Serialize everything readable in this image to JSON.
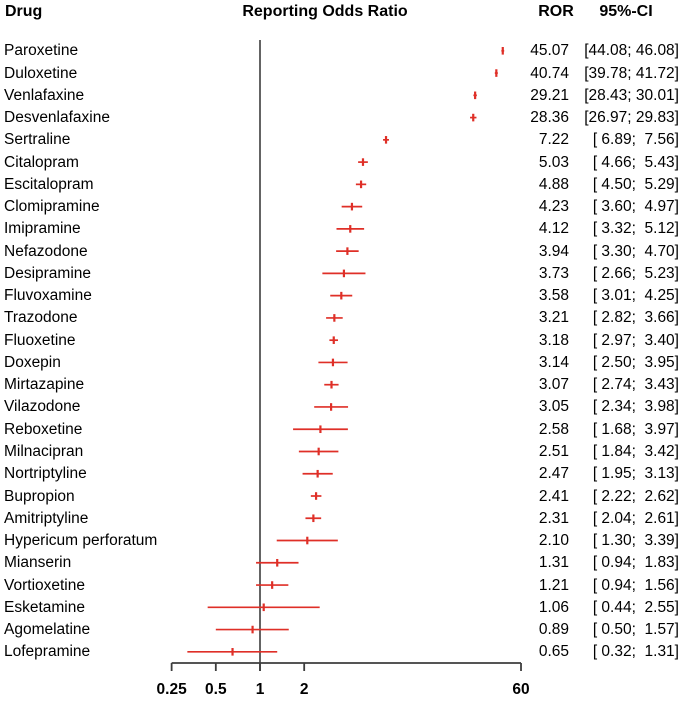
{
  "headers": {
    "drug": "Drug",
    "title": "Reporting Odds Ratio",
    "ror": "ROR",
    "ci": "95%-CI"
  },
  "colors": {
    "marker": "#df2f27",
    "axis": "#3d3d3d",
    "text": "#000000",
    "background": "#ffffff"
  },
  "chart_data": {
    "type": "forest",
    "title": "Reporting Odds Ratio",
    "x_scale": "log",
    "xlim": [
      0.25,
      60
    ],
    "ref_line": 1,
    "grid": false,
    "x_ticks": [
      {
        "value": 0.25,
        "label": "0.25"
      },
      {
        "value": 0.5,
        "label": "0.5"
      },
      {
        "value": 1,
        "label": "1"
      },
      {
        "value": 2,
        "label": "2"
      },
      {
        "value": 60,
        "label": "60"
      }
    ],
    "rows": [
      {
        "drug": "Paroxetine",
        "ror": 45.07,
        "low": 44.08,
        "high": 46.08,
        "ror_text": "45.07",
        "ci_text": "[44.08; 46.08]"
      },
      {
        "drug": "Duloxetine",
        "ror": 40.74,
        "low": 39.78,
        "high": 41.72,
        "ror_text": "40.74",
        "ci_text": "[39.78; 41.72]"
      },
      {
        "drug": "Venlafaxine",
        "ror": 29.21,
        "low": 28.43,
        "high": 30.01,
        "ror_text": "29.21",
        "ci_text": "[28.43; 30.01]"
      },
      {
        "drug": "Desvenlafaxine",
        "ror": 28.36,
        "low": 26.97,
        "high": 29.83,
        "ror_text": "28.36",
        "ci_text": "[26.97; 29.83]"
      },
      {
        "drug": "Sertraline",
        "ror": 7.22,
        "low": 6.89,
        "high": 7.56,
        "ror_text": "7.22",
        "ci_text": "[ 6.89;  7.56]"
      },
      {
        "drug": "Citalopram",
        "ror": 5.03,
        "low": 4.66,
        "high": 5.43,
        "ror_text": "5.03",
        "ci_text": "[ 4.66;  5.43]"
      },
      {
        "drug": "Escitalopram",
        "ror": 4.88,
        "low": 4.5,
        "high": 5.29,
        "ror_text": "4.88",
        "ci_text": "[ 4.50;  5.29]"
      },
      {
        "drug": "Clomipramine",
        "ror": 4.23,
        "low": 3.6,
        "high": 4.97,
        "ror_text": "4.23",
        "ci_text": "[ 3.60;  4.97]"
      },
      {
        "drug": "Imipramine",
        "ror": 4.12,
        "low": 3.32,
        "high": 5.12,
        "ror_text": "4.12",
        "ci_text": "[ 3.32;  5.12]"
      },
      {
        "drug": "Nefazodone",
        "ror": 3.94,
        "low": 3.3,
        "high": 4.7,
        "ror_text": "3.94",
        "ci_text": "[ 3.30;  4.70]"
      },
      {
        "drug": "Desipramine",
        "ror": 3.73,
        "low": 2.66,
        "high": 5.23,
        "ror_text": "3.73",
        "ci_text": "[ 2.66;  5.23]"
      },
      {
        "drug": "Fluvoxamine",
        "ror": 3.58,
        "low": 3.01,
        "high": 4.25,
        "ror_text": "3.58",
        "ci_text": "[ 3.01;  4.25]"
      },
      {
        "drug": "Trazodone",
        "ror": 3.21,
        "low": 2.82,
        "high": 3.66,
        "ror_text": "3.21",
        "ci_text": "[ 2.82;  3.66]"
      },
      {
        "drug": "Fluoxetine",
        "ror": 3.18,
        "low": 2.97,
        "high": 3.4,
        "ror_text": "3.18",
        "ci_text": "[ 2.97;  3.40]"
      },
      {
        "drug": "Doxepin",
        "ror": 3.14,
        "low": 2.5,
        "high": 3.95,
        "ror_text": "3.14",
        "ci_text": "[ 2.50;  3.95]"
      },
      {
        "drug": "Mirtazapine",
        "ror": 3.07,
        "low": 2.74,
        "high": 3.43,
        "ror_text": "3.07",
        "ci_text": "[ 2.74;  3.43]"
      },
      {
        "drug": "Vilazodone",
        "ror": 3.05,
        "low": 2.34,
        "high": 3.98,
        "ror_text": "3.05",
        "ci_text": "[ 2.34;  3.98]"
      },
      {
        "drug": "Reboxetine",
        "ror": 2.58,
        "low": 1.68,
        "high": 3.97,
        "ror_text": "2.58",
        "ci_text": "[ 1.68;  3.97]"
      },
      {
        "drug": "Milnacipran",
        "ror": 2.51,
        "low": 1.84,
        "high": 3.42,
        "ror_text": "2.51",
        "ci_text": "[ 1.84;  3.42]"
      },
      {
        "drug": "Nortriptyline",
        "ror": 2.47,
        "low": 1.95,
        "high": 3.13,
        "ror_text": "2.47",
        "ci_text": "[ 1.95;  3.13]"
      },
      {
        "drug": "Bupropion",
        "ror": 2.41,
        "low": 2.22,
        "high": 2.62,
        "ror_text": "2.41",
        "ci_text": "[ 2.22;  2.62]"
      },
      {
        "drug": "Amitriptyline",
        "ror": 2.31,
        "low": 2.04,
        "high": 2.61,
        "ror_text": "2.31",
        "ci_text": "[ 2.04;  2.61]"
      },
      {
        "drug": "Hypericum perforatum",
        "ror": 2.1,
        "low": 1.3,
        "high": 3.39,
        "ror_text": "2.10",
        "ci_text": "[ 1.30;  3.39]"
      },
      {
        "drug": "Mianserin",
        "ror": 1.31,
        "low": 0.94,
        "high": 1.83,
        "ror_text": "1.31",
        "ci_text": "[ 0.94;  1.83]"
      },
      {
        "drug": "Vortioxetine",
        "ror": 1.21,
        "low": 0.94,
        "high": 1.56,
        "ror_text": "1.21",
        "ci_text": "[ 0.94;  1.56]"
      },
      {
        "drug": "Esketamine",
        "ror": 1.06,
        "low": 0.44,
        "high": 2.55,
        "ror_text": "1.06",
        "ci_text": "[ 0.44;  2.55]"
      },
      {
        "drug": "Agomelatine",
        "ror": 0.89,
        "low": 0.5,
        "high": 1.57,
        "ror_text": "0.89",
        "ci_text": "[ 0.50;  1.57]"
      },
      {
        "drug": "Lofepramine",
        "ror": 0.65,
        "low": 0.32,
        "high": 1.31,
        "ror_text": "0.65",
        "ci_text": "[ 0.32;  1.31]"
      }
    ]
  }
}
